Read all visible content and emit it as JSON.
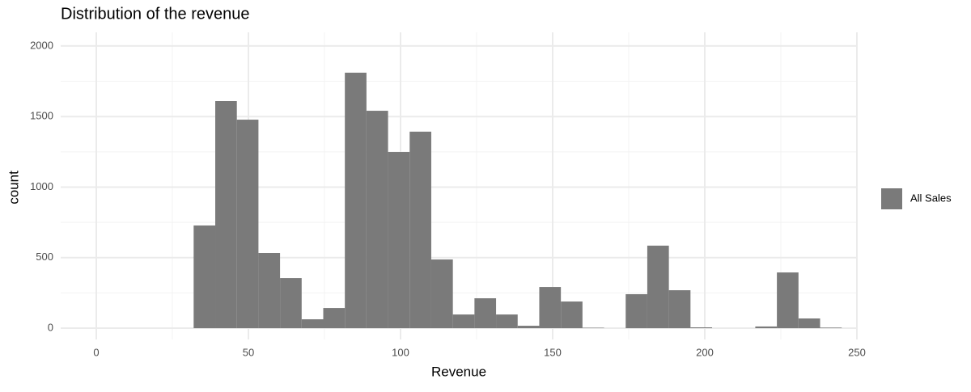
{
  "chart_data": {
    "type": "histogram",
    "title": "Distribution of the revenue",
    "x_label": "Revenue",
    "y_label": "count",
    "bins": [
      32,
      39.1,
      46.2,
      53.3,
      60.4,
      67.5,
      74.6,
      81.7,
      88.8,
      95.9,
      103,
      110.1,
      117.2,
      124.3,
      131.4,
      138.5,
      145.6,
      152.7,
      159.8,
      166.9,
      174,
      181.1,
      188.2,
      195.3,
      202.4,
      209.5,
      216.6,
      223.7,
      230.8,
      237.9,
      245
    ],
    "series": [
      {
        "name": "All Sales",
        "color": "#7a7a7a",
        "values": [
          728,
          1610,
          1478,
          533,
          355,
          63,
          143,
          1811,
          1541,
          1249,
          1393,
          487,
          97,
          212,
          97,
          17,
          292,
          189,
          3,
          0,
          241,
          585,
          269,
          6,
          0,
          0,
          12,
          395,
          69,
          4
        ]
      }
    ],
    "xlim": [
      -11.7,
      250
    ],
    "xticks": [
      0,
      50,
      100,
      150,
      200,
      250
    ],
    "x_minor_ticks": [
      25,
      75,
      125,
      175,
      225
    ],
    "ylim": [
      -80,
      2097
    ],
    "yticks": [
      0,
      500,
      1000,
      1500,
      2000
    ],
    "y_minor_ticks": [
      250,
      750,
      1250,
      1750
    ],
    "grid": true,
    "legend_position": "right"
  }
}
